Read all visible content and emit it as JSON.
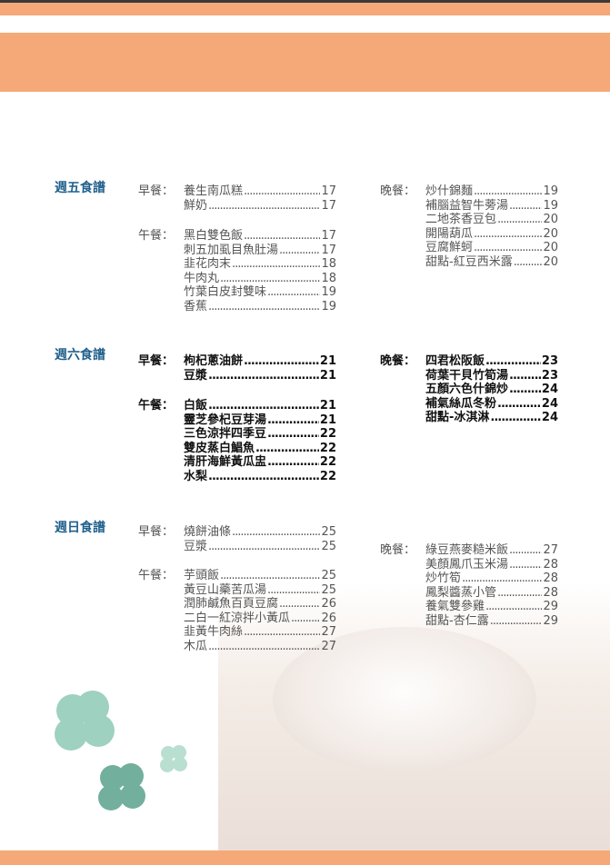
{
  "friday": {
    "title": "週五食譜",
    "breakfast": {
      "label": "早餐：",
      "items": [
        {
          "name": "養生南瓜糕",
          "page": "17"
        },
        {
          "name": "鮮奶",
          "page": "17"
        }
      ]
    },
    "lunch": {
      "label": "午餐：",
      "items": [
        {
          "name": "黑白雙色飯",
          "page": "17"
        },
        {
          "name": "刺五加虱目魚肚湯",
          "page": "17"
        },
        {
          "name": "韭花肉末",
          "page": "18"
        },
        {
          "name": "牛肉丸",
          "page": "18"
        },
        {
          "name": "竹葉白皮封雙味",
          "page": "19"
        },
        {
          "name": "香蕉",
          "page": "19"
        }
      ]
    },
    "dinner": {
      "label": "晚餐：",
      "items": [
        {
          "name": "炒什錦麵",
          "page": "19"
        },
        {
          "name": "補腦益智牛蒡湯",
          "page": "19"
        },
        {
          "name": "二地茶香豆包",
          "page": "20"
        },
        {
          "name": "開陽葫瓜",
          "page": "20"
        },
        {
          "name": "豆腐鮮蚵",
          "page": "20"
        },
        {
          "name": "甜點-紅豆西米露",
          "page": "20"
        }
      ]
    }
  },
  "saturday": {
    "title": "週六食譜",
    "breakfast": {
      "label": "早餐：",
      "items": [
        {
          "name": "枸杞蔥油餅",
          "page": "21"
        },
        {
          "name": "豆漿",
          "page": "21"
        }
      ]
    },
    "lunch": {
      "label": "午餐：",
      "items": [
        {
          "name": "白飯",
          "page": "21"
        },
        {
          "name": "靈芝參杞豆芽湯",
          "page": "21"
        },
        {
          "name": "三色涼拌四季豆",
          "page": "22"
        },
        {
          "name": "雙皮蒸白鯧魚",
          "page": "22"
        },
        {
          "name": "清肝海鮮黃瓜盅",
          "page": "22"
        },
        {
          "name": "水梨",
          "page": "22"
        }
      ]
    },
    "dinner": {
      "label": "晚餐：",
      "items": [
        {
          "name": "四君松阪飯",
          "page": "23"
        },
        {
          "name": "荷葉干貝竹筍湯",
          "page": "23"
        },
        {
          "name": "五顏六色什錦炒",
          "page": "24"
        },
        {
          "name": "補氣絲瓜冬粉",
          "page": "24"
        },
        {
          "name": "甜點-冰淇淋",
          "page": "24"
        }
      ]
    }
  },
  "sunday": {
    "title": "週日食譜",
    "breakfast": {
      "label": "早餐：",
      "items": [
        {
          "name": "燒餅油條",
          "page": "25"
        },
        {
          "name": "豆漿",
          "page": "25"
        }
      ]
    },
    "lunch": {
      "label": "午餐：",
      "items": [
        {
          "name": "芋頭飯",
          "page": "25"
        },
        {
          "name": "黃豆山藥苦瓜湯",
          "page": "25"
        },
        {
          "name": "潤肺鹹魚百頁豆腐",
          "page": "26"
        },
        {
          "name": "二白一紅涼拌小黃瓜",
          "page": "26"
        },
        {
          "name": "韭黃牛肉絲",
          "page": "27"
        },
        {
          "name": "木瓜",
          "page": "27"
        }
      ]
    },
    "dinner": {
      "label": "晚餐：",
      "items": [
        {
          "name": "綠豆燕麥糙米飯",
          "page": "27"
        },
        {
          "name": "美顏鳳爪玉米湯",
          "page": "28"
        },
        {
          "name": "炒竹筍",
          "page": "28"
        },
        {
          "name": "鳳梨醬蒸小管",
          "page": "28"
        },
        {
          "name": "養氣雙參雞",
          "page": "29"
        },
        {
          "name": "甜點-杏仁露",
          "page": "29"
        }
      ]
    }
  },
  "colors": {
    "accent": "#f6a978",
    "heading": "#1f5f8b",
    "clover": "#8ec9b4"
  }
}
